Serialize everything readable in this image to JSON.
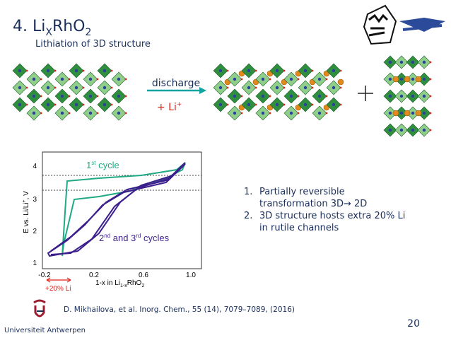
{
  "header": {
    "title": [
      "4. Li",
      "X",
      "RhO",
      "2"
    ],
    "subtitle": "Lithiation of 3D structure"
  },
  "scheme": {
    "arrow_label": "discharge",
    "reagent": [
      "+ Li",
      "+"
    ]
  },
  "figure": {
    "y_label": [
      "E vs. Li/Li",
      "+",
      ", V"
    ],
    "yticks": [
      "4",
      "3",
      "2",
      "1"
    ],
    "xticks": [
      "-0.2",
      "0.2",
      "0.6",
      "1.0"
    ],
    "x_label": [
      "1-x in Li",
      "1-x",
      "RhO",
      "2"
    ],
    "first_cycle": [
      "1",
      "st",
      " cycle"
    ],
    "later_cycles": [
      "2",
      "nd",
      " and 3",
      "rd",
      " cycles"
    ],
    "li_excess": "+20% Li"
  },
  "list": [
    {
      "number": "1.",
      "lines": [
        "Partially reversible",
        "transformation 3D→ 2D"
      ]
    },
    {
      "number": "2.",
      "lines": [
        "3D structure hosts extra 20% Li",
        "in rutile channels"
      ]
    }
  ],
  "citation": "D. Mikhailova, et al. Inorg. Chem., 55 (14), 7079–7089, (2016)",
  "page_number": "20",
  "university": "Universiteit Antwerpen"
}
